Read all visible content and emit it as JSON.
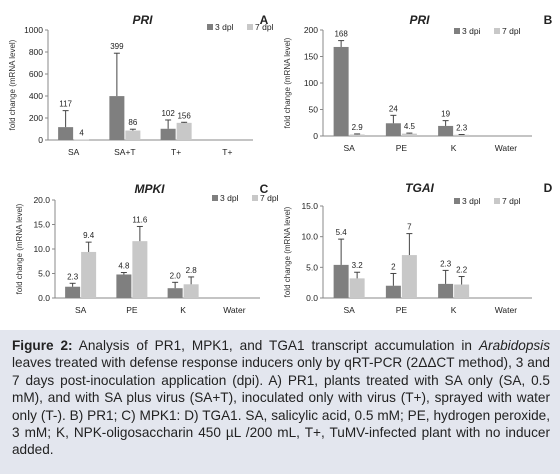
{
  "figure": {
    "caption_label": "Figure 2:",
    "caption_pre": " Analysis of PR1, MPK1, and TGA1 transcript accumulation in ",
    "caption_italic": "Arabidopsis",
    "caption_post": " leaves treated with defense response inducers only by qRT-PCR (2ΔΔCT method), 3 and 7 days post-inoculation application (dpi). A) PR1, plants treated with SA only (SA, 0.5 mM), and with SA plus virus (SA+T), inoculated only with virus (T+), sprayed with water only (T-). B) PR1; C) MPK1: D) TGA1. SA, salicylic acid, 0.5 mM; PE, hydrogen peroxide, 3 mM; K, NPK-oligosaccharin 450 µL /200 mL, T+, TuMV-infected plant with no inducer added."
  },
  "colors": {
    "dpi3": "#7f7f7f",
    "dpi7": "#c8c8c8",
    "axis": "#888888",
    "caption_bg": "#e3e6ee"
  },
  "chart_data": [
    {
      "type": "bar",
      "panel_letter": "A",
      "title": "PRI",
      "ylabel": "fold change (mRNA level)",
      "xlabel": "",
      "categories": [
        "SA",
        "SA+T",
        "T+",
        "T+"
      ],
      "ylim": [
        0,
        1000
      ],
      "yticks": [
        "0",
        "200",
        "400",
        "600",
        "800",
        "1000"
      ],
      "grid": false,
      "legend_position": "top-right",
      "series": [
        {
          "name": "3 dpl",
          "values": [
            117,
            399,
            102,
            null
          ],
          "errors": [
            150,
            390,
            80,
            null
          ],
          "labels": [
            "117",
            "399",
            "102",
            ""
          ]
        },
        {
          "name": "7 dpl",
          "values": [
            4,
            86,
            156,
            null
          ],
          "errors": [
            0,
            12,
            5,
            null
          ],
          "labels": [
            "4",
            "86",
            "156",
            ""
          ]
        }
      ]
    },
    {
      "type": "bar",
      "panel_letter": "B",
      "title": "PRI",
      "ylabel": "fold change (mRNA level)",
      "xlabel": "",
      "categories": [
        "SA",
        "PE",
        "K",
        "Water"
      ],
      "ylim": [
        0,
        200
      ],
      "yticks": [
        "0",
        "50",
        "100",
        "150",
        "200"
      ],
      "grid": false,
      "legend_position": "top-right",
      "series": [
        {
          "name": "3 dpi",
          "values": [
            168,
            24,
            19,
            null
          ],
          "errors": [
            12,
            15,
            10,
            null
          ],
          "labels": [
            "168",
            "24",
            "19",
            ""
          ]
        },
        {
          "name": "7 dpl",
          "values": [
            2.9,
            4.5,
            2.3,
            null
          ],
          "errors": [
            1,
            1,
            0.5,
            null
          ],
          "labels": [
            "2.9",
            "4.5",
            "2.3",
            ""
          ]
        }
      ]
    },
    {
      "type": "bar",
      "panel_letter": "C",
      "title": "MPKI",
      "ylabel": "fold change (mRNA level)",
      "xlabel": "",
      "categories": [
        "SA",
        "PE",
        "K",
        "Water"
      ],
      "ylim": [
        0,
        20
      ],
      "yticks": [
        "0.0",
        "5.0",
        "10.0",
        "15.0",
        "20.0"
      ],
      "grid": false,
      "legend_position": "top-right",
      "series": [
        {
          "name": "3 dpl",
          "values": [
            2.3,
            4.8,
            2.0,
            null
          ],
          "errors": [
            0.7,
            0.4,
            1.2,
            null
          ],
          "labels": [
            "2.3",
            "4.8",
            "2.0",
            ""
          ]
        },
        {
          "name": "7 dpl",
          "values": [
            9.4,
            11.6,
            2.8,
            null
          ],
          "errors": [
            2.0,
            3.0,
            1.5,
            null
          ],
          "labels": [
            "9.4",
            "11.6",
            "2.8",
            ""
          ]
        }
      ]
    },
    {
      "type": "bar",
      "panel_letter": "D",
      "title": "TGAI",
      "ylabel": "fold change (mRNA level)",
      "xlabel": "",
      "categories": [
        "SA",
        "PE",
        "K",
        "Water"
      ],
      "ylim": [
        0,
        15
      ],
      "yticks": [
        "0.0",
        "5.0",
        "10.0",
        "15.0"
      ],
      "grid": false,
      "legend_position": "top-right",
      "series": [
        {
          "name": "3 dpl",
          "values": [
            5.4,
            2.0,
            2.3,
            null
          ],
          "errors": [
            4.2,
            2.0,
            2.2,
            null
          ],
          "labels": [
            "5.4",
            "2",
            "2.3",
            ""
          ]
        },
        {
          "name": "7 dpl",
          "values": [
            3.2,
            7.0,
            2.2,
            null
          ],
          "errors": [
            1.0,
            3.5,
            1.3,
            null
          ],
          "labels": [
            "3.2",
            "7",
            "2.2",
            ""
          ]
        }
      ]
    }
  ]
}
